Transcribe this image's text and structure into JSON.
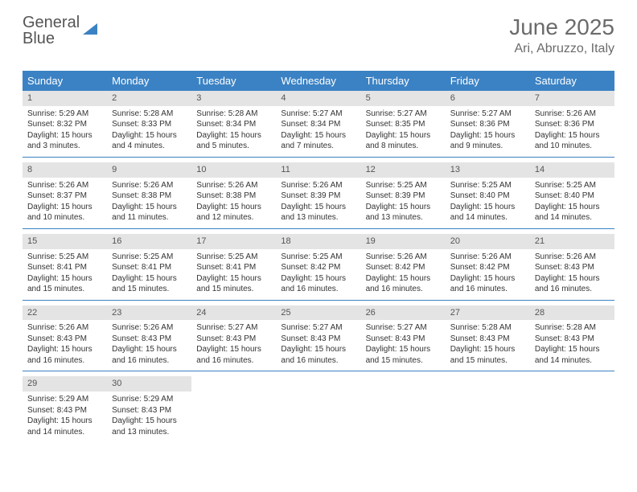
{
  "logo": {
    "line1": "General",
    "line2": "Blue"
  },
  "title": {
    "month": "June 2025",
    "location": "Ari, Abruzzo, Italy"
  },
  "colors": {
    "header_bg": "#3b82c4",
    "daynum_bg": "#e4e4e4",
    "rule": "#3b82c4",
    "text": "#333333",
    "muted": "#6b6b6b"
  },
  "weekdays": [
    "Sunday",
    "Monday",
    "Tuesday",
    "Wednesday",
    "Thursday",
    "Friday",
    "Saturday"
  ],
  "days": [
    {
      "n": 1,
      "sunrise": "5:29 AM",
      "sunset": "8:32 PM",
      "daylight": "15 hours and 3 minutes."
    },
    {
      "n": 2,
      "sunrise": "5:28 AM",
      "sunset": "8:33 PM",
      "daylight": "15 hours and 4 minutes."
    },
    {
      "n": 3,
      "sunrise": "5:28 AM",
      "sunset": "8:34 PM",
      "daylight": "15 hours and 5 minutes."
    },
    {
      "n": 4,
      "sunrise": "5:27 AM",
      "sunset": "8:34 PM",
      "daylight": "15 hours and 7 minutes."
    },
    {
      "n": 5,
      "sunrise": "5:27 AM",
      "sunset": "8:35 PM",
      "daylight": "15 hours and 8 minutes."
    },
    {
      "n": 6,
      "sunrise": "5:27 AM",
      "sunset": "8:36 PM",
      "daylight": "15 hours and 9 minutes."
    },
    {
      "n": 7,
      "sunrise": "5:26 AM",
      "sunset": "8:36 PM",
      "daylight": "15 hours and 10 minutes."
    },
    {
      "n": 8,
      "sunrise": "5:26 AM",
      "sunset": "8:37 PM",
      "daylight": "15 hours and 10 minutes."
    },
    {
      "n": 9,
      "sunrise": "5:26 AM",
      "sunset": "8:38 PM",
      "daylight": "15 hours and 11 minutes."
    },
    {
      "n": 10,
      "sunrise": "5:26 AM",
      "sunset": "8:38 PM",
      "daylight": "15 hours and 12 minutes."
    },
    {
      "n": 11,
      "sunrise": "5:26 AM",
      "sunset": "8:39 PM",
      "daylight": "15 hours and 13 minutes."
    },
    {
      "n": 12,
      "sunrise": "5:25 AM",
      "sunset": "8:39 PM",
      "daylight": "15 hours and 13 minutes."
    },
    {
      "n": 13,
      "sunrise": "5:25 AM",
      "sunset": "8:40 PM",
      "daylight": "15 hours and 14 minutes."
    },
    {
      "n": 14,
      "sunrise": "5:25 AM",
      "sunset": "8:40 PM",
      "daylight": "15 hours and 14 minutes."
    },
    {
      "n": 15,
      "sunrise": "5:25 AM",
      "sunset": "8:41 PM",
      "daylight": "15 hours and 15 minutes."
    },
    {
      "n": 16,
      "sunrise": "5:25 AM",
      "sunset": "8:41 PM",
      "daylight": "15 hours and 15 minutes."
    },
    {
      "n": 17,
      "sunrise": "5:25 AM",
      "sunset": "8:41 PM",
      "daylight": "15 hours and 15 minutes."
    },
    {
      "n": 18,
      "sunrise": "5:25 AM",
      "sunset": "8:42 PM",
      "daylight": "15 hours and 16 minutes."
    },
    {
      "n": 19,
      "sunrise": "5:26 AM",
      "sunset": "8:42 PM",
      "daylight": "15 hours and 16 minutes."
    },
    {
      "n": 20,
      "sunrise": "5:26 AM",
      "sunset": "8:42 PM",
      "daylight": "15 hours and 16 minutes."
    },
    {
      "n": 21,
      "sunrise": "5:26 AM",
      "sunset": "8:43 PM",
      "daylight": "15 hours and 16 minutes."
    },
    {
      "n": 22,
      "sunrise": "5:26 AM",
      "sunset": "8:43 PM",
      "daylight": "15 hours and 16 minutes."
    },
    {
      "n": 23,
      "sunrise": "5:26 AM",
      "sunset": "8:43 PM",
      "daylight": "15 hours and 16 minutes."
    },
    {
      "n": 24,
      "sunrise": "5:27 AM",
      "sunset": "8:43 PM",
      "daylight": "15 hours and 16 minutes."
    },
    {
      "n": 25,
      "sunrise": "5:27 AM",
      "sunset": "8:43 PM",
      "daylight": "15 hours and 16 minutes."
    },
    {
      "n": 26,
      "sunrise": "5:27 AM",
      "sunset": "8:43 PM",
      "daylight": "15 hours and 15 minutes."
    },
    {
      "n": 27,
      "sunrise": "5:28 AM",
      "sunset": "8:43 PM",
      "daylight": "15 hours and 15 minutes."
    },
    {
      "n": 28,
      "sunrise": "5:28 AM",
      "sunset": "8:43 PM",
      "daylight": "15 hours and 14 minutes."
    },
    {
      "n": 29,
      "sunrise": "5:29 AM",
      "sunset": "8:43 PM",
      "daylight": "15 hours and 14 minutes."
    },
    {
      "n": 30,
      "sunrise": "5:29 AM",
      "sunset": "8:43 PM",
      "daylight": "15 hours and 13 minutes."
    }
  ],
  "labels": {
    "sunrise": "Sunrise:",
    "sunset": "Sunset:",
    "daylight": "Daylight:"
  },
  "layout": {
    "columns": 7,
    "first_day_offset": 0,
    "total_cells": 35
  }
}
